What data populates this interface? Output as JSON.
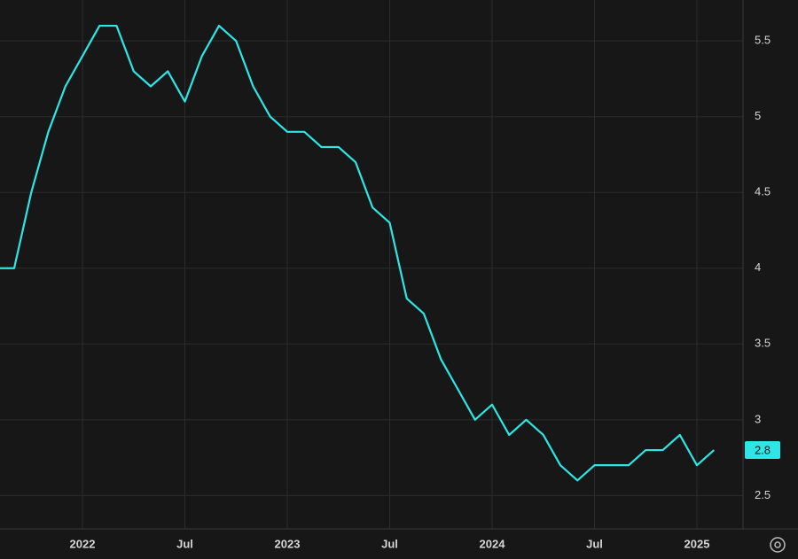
{
  "chart_data": {
    "type": "line",
    "x": [
      "2021-08",
      "2021-09",
      "2021-10",
      "2021-11",
      "2021-12",
      "2022-01",
      "2022-02",
      "2022-03",
      "2022-04",
      "2022-05",
      "2022-06",
      "2022-07",
      "2022-08",
      "2022-09",
      "2022-10",
      "2022-11",
      "2022-12",
      "2023-01",
      "2023-02",
      "2023-03",
      "2023-04",
      "2023-05",
      "2023-06",
      "2023-07",
      "2023-08",
      "2023-09",
      "2023-10",
      "2023-11",
      "2023-12",
      "2024-01",
      "2024-02",
      "2024-03",
      "2024-04",
      "2024-05",
      "2024-06",
      "2024-07",
      "2024-08",
      "2024-09",
      "2024-10",
      "2024-11",
      "2024-12",
      "2025-01",
      "2025-02"
    ],
    "series": [
      {
        "color": "#2ee6e6",
        "values": [
          4.0,
          4.0,
          4.5,
          4.9,
          5.2,
          5.4,
          5.6,
          5.6,
          5.3,
          5.2,
          5.3,
          5.1,
          5.4,
          5.6,
          5.5,
          5.2,
          5.0,
          4.9,
          4.9,
          4.8,
          4.8,
          4.7,
          4.4,
          4.3,
          3.8,
          3.7,
          3.4,
          3.2,
          3.0,
          3.1,
          2.9,
          3.0,
          2.9,
          2.7,
          2.6,
          2.7,
          2.7,
          2.7,
          2.8,
          2.8,
          2.9,
          2.7,
          2.8
        ]
      }
    ],
    "ylim": [
      2.28,
      5.77
    ],
    "yticks": [
      2.5,
      3,
      3.5,
      4,
      4.5,
      5,
      5.5
    ],
    "xticks": [
      {
        "value": "2022-01",
        "label": "2022"
      },
      {
        "value": "2022-07",
        "label": "Jul"
      },
      {
        "value": "2023-01",
        "label": "2023"
      },
      {
        "value": "2023-07",
        "label": "Jul"
      },
      {
        "value": "2024-01",
        "label": "2024"
      },
      {
        "value": "2024-07",
        "label": "Jul"
      },
      {
        "value": "2025-01",
        "label": "2025"
      }
    ],
    "grid": true
  }
}
